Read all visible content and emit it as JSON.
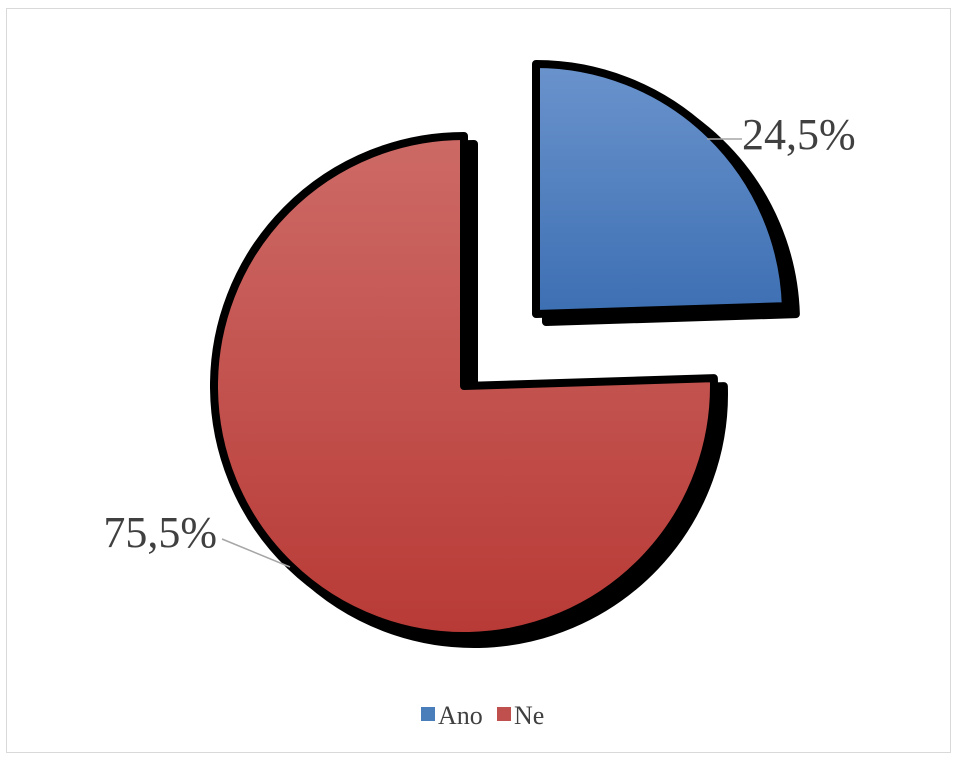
{
  "chart_data": {
    "type": "pie",
    "exploded": true,
    "legend_position": "bottom",
    "data_labels": true,
    "slices": [
      {
        "name": "Ano",
        "value": 24.5,
        "label": "24,5%",
        "color": "#4a7ebb"
      },
      {
        "name": "Ne",
        "value": 75.5,
        "label": "75,5%",
        "color": "#c0504d"
      }
    ]
  }
}
